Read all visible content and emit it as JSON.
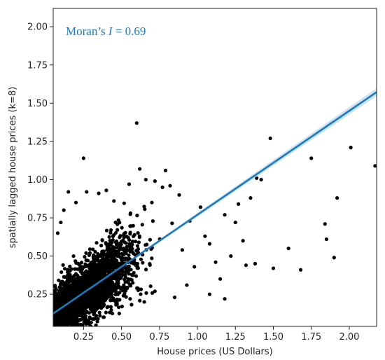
{
  "chart_data": {
    "type": "scatter",
    "xlabel": "House prices (US Dollars)",
    "ylabel": "spatially lagged house prices (k=8)",
    "xlim": [
      0.05,
      2.18
    ],
    "ylim": [
      0.04,
      2.12
    ],
    "x_ticks": [
      "0.25",
      "0.50",
      "0.75",
      "1.00",
      "1.25",
      "1.50",
      "1.75",
      "2.00"
    ],
    "y_ticks": [
      "0.25",
      "0.50",
      "0.75",
      "1.00",
      "1.25",
      "1.50",
      "1.75",
      "2.00"
    ],
    "grid": false,
    "annotation": {
      "prefix": "Moran’s ",
      "variable": "I",
      "suffix": " = 0.69"
    },
    "points_color": "#000000",
    "line_color": "#1a7bbf",
    "ci_color": "#a6cbe8",
    "annotation_color": "#1a7bbf",
    "regression": {
      "slope": 0.68,
      "intercept": 0.09,
      "x_range": [
        0.05,
        2.18
      ]
    },
    "points": [
      [
        0.6,
        1.37
      ],
      [
        0.25,
        1.14
      ],
      [
        0.62,
        1.07
      ],
      [
        0.79,
        1.06
      ],
      [
        1.48,
        1.27
      ],
      [
        1.75,
        1.14
      ],
      [
        2.01,
        1.21
      ],
      [
        2.17,
        1.09
      ],
      [
        1.39,
        1.01
      ],
      [
        1.42,
        1.0
      ],
      [
        1.5,
        0.42
      ],
      [
        1.6,
        0.55
      ],
      [
        1.68,
        0.41
      ],
      [
        1.85,
        0.61
      ],
      [
        1.92,
        0.88
      ],
      [
        1.9,
        0.49
      ],
      [
        1.84,
        0.71
      ],
      [
        1.25,
        0.72
      ],
      [
        1.3,
        0.6
      ],
      [
        1.22,
        0.5
      ],
      [
        1.12,
        0.46
      ],
      [
        1.05,
        0.63
      ],
      [
        0.98,
        0.43
      ],
      [
        0.93,
        0.31
      ],
      [
        1.15,
        0.35
      ],
      [
        1.32,
        0.44
      ],
      [
        1.27,
        0.84
      ],
      [
        1.35,
        0.88
      ],
      [
        1.18,
        0.77
      ],
      [
        1.02,
        0.82
      ],
      [
        0.95,
        0.73
      ],
      [
        0.88,
        0.9
      ],
      [
        0.82,
        0.96
      ],
      [
        0.72,
        0.99
      ],
      [
        0.55,
        0.97
      ],
      [
        0.4,
        0.93
      ],
      [
        0.35,
        0.91
      ],
      [
        0.2,
        0.85
      ],
      [
        0.12,
        0.8
      ],
      [
        0.1,
        0.72
      ],
      [
        0.08,
        0.65
      ],
      [
        0.27,
        0.92
      ],
      [
        0.45,
        0.86
      ],
      [
        0.7,
        0.85
      ],
      [
        0.77,
        0.95
      ],
      [
        1.08,
        0.25
      ],
      [
        1.18,
        0.22
      ],
      [
        0.85,
        0.23
      ],
      [
        0.65,
        0.2
      ],
      [
        0.15,
        0.92
      ],
      [
        0.72,
        0.27
      ],
      [
        0.9,
        0.54
      ],
      [
        1.08,
        0.58
      ],
      [
        1.38,
        0.45
      ],
      [
        0.66,
        1.0
      ]
    ],
    "cluster": {
      "count": 2600,
      "seed": 7,
      "x_min": 0.05,
      "x_mode": 0.25,
      "x_sd": 0.16,
      "noise_sd": 0.11
    }
  }
}
